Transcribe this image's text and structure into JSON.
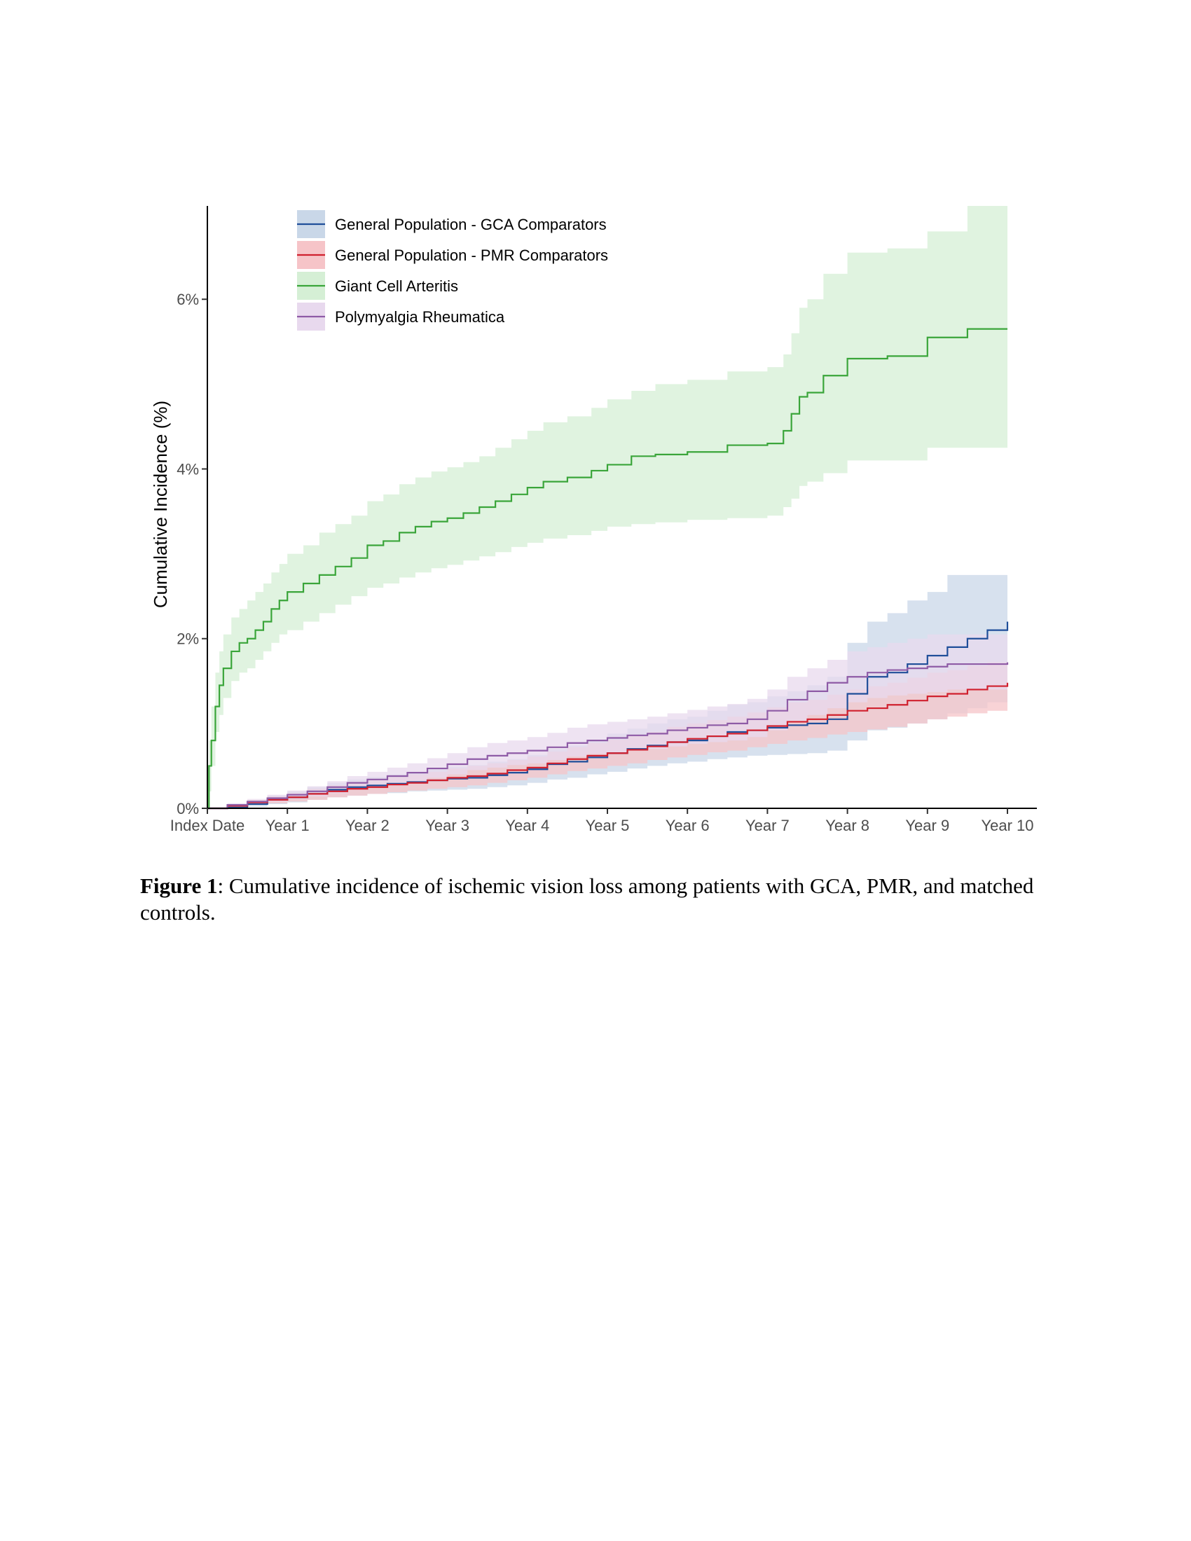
{
  "figure": {
    "label": "Figure 1",
    "caption": ": Cumulative incidence of ischemic vision loss among patients with GCA, PMR, and matched controls."
  },
  "chart_data": {
    "type": "line",
    "step": true,
    "confidence_bands": true,
    "ylabel": "Cumulative Incidence (%)",
    "xlabel": "",
    "x_tick_labels": [
      "Index Date",
      "Year 1",
      "Year 2",
      "Year 3",
      "Year 4",
      "Year 5",
      "Year 6",
      "Year 7",
      "Year 8",
      "Year 9",
      "Year 10"
    ],
    "x_ticks": [
      0,
      1,
      2,
      3,
      4,
      5,
      6,
      7,
      8,
      9,
      10
    ],
    "y_tick_labels": [
      "0%",
      "2%",
      "4%",
      "6%"
    ],
    "y_ticks": [
      0,
      2,
      4,
      6
    ],
    "xlim": [
      0,
      10
    ],
    "ylim": [
      0,
      7.1
    ],
    "grid": false,
    "legend_position": "top-left",
    "series": [
      {
        "name": "General Population - GCA Comparators",
        "color": "#1f4e99",
        "band_color": "#c9d7e8",
        "x": [
          0,
          0.25,
          0.5,
          0.75,
          1,
          1.25,
          1.5,
          1.75,
          2,
          2.25,
          2.5,
          2.75,
          3,
          3.25,
          3.5,
          3.75,
          4,
          4.25,
          4.5,
          4.75,
          5,
          5.25,
          5.5,
          5.75,
          6,
          6.25,
          6.5,
          6.75,
          7,
          7.25,
          7.5,
          7.75,
          8,
          8.25,
          8.5,
          8.75,
          9,
          9.25,
          9.5,
          9.75,
          10
        ],
        "y": [
          0,
          0.01,
          0.05,
          0.1,
          0.13,
          0.17,
          0.22,
          0.25,
          0.27,
          0.29,
          0.31,
          0.33,
          0.35,
          0.36,
          0.39,
          0.42,
          0.46,
          0.52,
          0.55,
          0.6,
          0.65,
          0.7,
          0.74,
          0.78,
          0.8,
          0.85,
          0.9,
          0.92,
          0.95,
          0.98,
          1.0,
          1.05,
          1.35,
          1.55,
          1.6,
          1.7,
          1.8,
          1.9,
          2.0,
          2.1,
          2.2
        ],
        "lower": [
          0,
          0,
          0.02,
          0.05,
          0.07,
          0.1,
          0.13,
          0.15,
          0.17,
          0.18,
          0.2,
          0.21,
          0.22,
          0.23,
          0.25,
          0.27,
          0.3,
          0.34,
          0.36,
          0.4,
          0.43,
          0.47,
          0.5,
          0.53,
          0.55,
          0.58,
          0.6,
          0.62,
          0.63,
          0.64,
          0.65,
          0.68,
          0.8,
          0.92,
          0.95,
          1.0,
          1.05,
          1.12,
          1.18,
          1.25,
          1.3
        ],
        "upper": [
          0,
          0.03,
          0.09,
          0.15,
          0.2,
          0.25,
          0.3,
          0.34,
          0.37,
          0.4,
          0.43,
          0.46,
          0.49,
          0.51,
          0.55,
          0.58,
          0.63,
          0.7,
          0.74,
          0.8,
          0.88,
          0.94,
          1.0,
          1.05,
          1.08,
          1.15,
          1.22,
          1.25,
          1.32,
          1.38,
          1.45,
          1.55,
          1.95,
          2.2,
          2.3,
          2.45,
          2.55,
          2.75,
          2.75,
          2.75,
          3.05
        ]
      },
      {
        "name": "General Population - PMR Comparators",
        "color": "#d0202e",
        "band_color": "#f6c4c8",
        "x": [
          0,
          0.25,
          0.5,
          0.75,
          1,
          1.25,
          1.5,
          1.75,
          2,
          2.25,
          2.5,
          2.75,
          3,
          3.25,
          3.5,
          3.75,
          4,
          4.25,
          4.5,
          4.75,
          5,
          5.25,
          5.5,
          5.75,
          6,
          6.25,
          6.5,
          6.75,
          7,
          7.25,
          7.5,
          7.75,
          8,
          8.25,
          8.5,
          8.75,
          9,
          9.25,
          9.5,
          9.75,
          10
        ],
        "y": [
          0,
          0.03,
          0.07,
          0.1,
          0.13,
          0.17,
          0.2,
          0.23,
          0.25,
          0.28,
          0.3,
          0.33,
          0.36,
          0.38,
          0.41,
          0.45,
          0.48,
          0.53,
          0.58,
          0.62,
          0.65,
          0.69,
          0.73,
          0.78,
          0.82,
          0.85,
          0.88,
          0.92,
          0.97,
          1.02,
          1.05,
          1.1,
          1.15,
          1.18,
          1.22,
          1.27,
          1.32,
          1.35,
          1.4,
          1.44,
          1.48
        ],
        "lower": [
          0,
          0.01,
          0.04,
          0.06,
          0.08,
          0.1,
          0.13,
          0.15,
          0.17,
          0.19,
          0.21,
          0.23,
          0.25,
          0.27,
          0.3,
          0.33,
          0.36,
          0.4,
          0.44,
          0.47,
          0.5,
          0.53,
          0.57,
          0.6,
          0.63,
          0.66,
          0.68,
          0.72,
          0.76,
          0.8,
          0.83,
          0.87,
          0.9,
          0.93,
          0.96,
          1.0,
          1.05,
          1.08,
          1.12,
          1.15,
          1.2
        ],
        "upper": [
          0,
          0.05,
          0.1,
          0.14,
          0.18,
          0.23,
          0.27,
          0.3,
          0.33,
          0.37,
          0.4,
          0.43,
          0.47,
          0.5,
          0.53,
          0.57,
          0.61,
          0.67,
          0.72,
          0.77,
          0.81,
          0.85,
          0.9,
          0.96,
          1.0,
          1.04,
          1.08,
          1.13,
          1.19,
          1.25,
          1.28,
          1.34,
          1.4,
          1.44,
          1.48,
          1.54,
          1.6,
          1.63,
          1.68,
          1.72,
          1.77
        ]
      },
      {
        "name": "Giant Cell Arteritis",
        "color": "#3aa53a",
        "band_color": "#d5efd5",
        "x": [
          0,
          0.02,
          0.05,
          0.1,
          0.15,
          0.2,
          0.3,
          0.4,
          0.5,
          0.6,
          0.7,
          0.8,
          0.9,
          1,
          1.2,
          1.4,
          1.6,
          1.8,
          2,
          2.2,
          2.4,
          2.6,
          2.8,
          3,
          3.2,
          3.4,
          3.6,
          3.8,
          4,
          4.2,
          4.5,
          4.8,
          5,
          5.3,
          5.6,
          6,
          6.5,
          7,
          7.2,
          7.3,
          7.4,
          7.5,
          7.7,
          8,
          8.5,
          9,
          9.5,
          10
        ],
        "y": [
          0,
          0.5,
          0.8,
          1.2,
          1.45,
          1.65,
          1.85,
          1.95,
          2.0,
          2.1,
          2.2,
          2.35,
          2.45,
          2.55,
          2.65,
          2.75,
          2.85,
          2.95,
          3.1,
          3.15,
          3.25,
          3.32,
          3.38,
          3.42,
          3.48,
          3.55,
          3.62,
          3.7,
          3.78,
          3.85,
          3.9,
          3.98,
          4.05,
          4.15,
          4.17,
          4.2,
          4.28,
          4.3,
          4.45,
          4.65,
          4.85,
          4.9,
          5.1,
          5.3,
          5.33,
          5.55,
          5.65,
          5.65
        ],
        "lower": [
          0,
          0.2,
          0.5,
          0.9,
          1.1,
          1.3,
          1.5,
          1.6,
          1.65,
          1.75,
          1.85,
          1.95,
          2.05,
          2.1,
          2.2,
          2.3,
          2.4,
          2.5,
          2.6,
          2.65,
          2.72,
          2.78,
          2.83,
          2.87,
          2.92,
          2.97,
          3.02,
          3.08,
          3.13,
          3.18,
          3.22,
          3.27,
          3.32,
          3.35,
          3.37,
          3.4,
          3.42,
          3.45,
          3.55,
          3.65,
          3.8,
          3.85,
          3.95,
          4.1,
          4.1,
          4.25,
          4.25,
          4.25
        ],
        "upper": [
          0,
          0.8,
          1.2,
          1.6,
          1.85,
          2.05,
          2.25,
          2.35,
          2.45,
          2.55,
          2.65,
          2.78,
          2.88,
          3.0,
          3.1,
          3.25,
          3.35,
          3.45,
          3.62,
          3.7,
          3.82,
          3.9,
          3.97,
          4.02,
          4.08,
          4.15,
          4.25,
          4.35,
          4.45,
          4.55,
          4.62,
          4.72,
          4.82,
          4.92,
          5.0,
          5.05,
          5.15,
          5.2,
          5.35,
          5.6,
          5.9,
          6.0,
          6.3,
          6.55,
          6.6,
          6.8,
          7.1,
          7.1
        ]
      },
      {
        "name": "Polymyalgia Rheumatica",
        "color": "#8e5ba6",
        "band_color": "#e8d9ee",
        "x": [
          0,
          0.25,
          0.5,
          0.75,
          1,
          1.25,
          1.5,
          1.75,
          2,
          2.25,
          2.5,
          2.75,
          3,
          3.25,
          3.5,
          3.75,
          4,
          4.25,
          4.5,
          4.75,
          5,
          5.25,
          5.5,
          5.75,
          6,
          6.25,
          6.5,
          6.75,
          7,
          7.25,
          7.5,
          7.75,
          8,
          8.25,
          8.5,
          8.75,
          9,
          9.25,
          9.5,
          9.75,
          10
        ],
        "y": [
          0,
          0.04,
          0.08,
          0.12,
          0.16,
          0.2,
          0.25,
          0.3,
          0.34,
          0.38,
          0.42,
          0.47,
          0.52,
          0.58,
          0.62,
          0.65,
          0.68,
          0.72,
          0.77,
          0.8,
          0.83,
          0.86,
          0.88,
          0.92,
          0.95,
          0.98,
          1.0,
          1.05,
          1.15,
          1.28,
          1.38,
          1.48,
          1.55,
          1.6,
          1.63,
          1.65,
          1.67,
          1.7,
          1.7,
          1.7,
          1.72
        ],
        "lower": [
          0,
          0.02,
          0.05,
          0.08,
          0.11,
          0.14,
          0.18,
          0.22,
          0.25,
          0.28,
          0.32,
          0.36,
          0.4,
          0.45,
          0.48,
          0.51,
          0.53,
          0.57,
          0.61,
          0.64,
          0.66,
          0.68,
          0.7,
          0.73,
          0.76,
          0.78,
          0.8,
          0.84,
          0.92,
          1.02,
          1.1,
          1.18,
          1.25,
          1.3,
          1.33,
          1.35,
          1.37,
          1.4,
          1.4,
          1.4,
          1.42
        ],
        "upper": [
          0,
          0.06,
          0.11,
          0.16,
          0.21,
          0.26,
          0.32,
          0.38,
          0.43,
          0.48,
          0.53,
          0.59,
          0.65,
          0.72,
          0.77,
          0.8,
          0.84,
          0.89,
          0.95,
          0.99,
          1.02,
          1.05,
          1.08,
          1.12,
          1.16,
          1.2,
          1.23,
          1.29,
          1.4,
          1.55,
          1.65,
          1.75,
          1.85,
          1.9,
          1.95,
          2.0,
          2.05,
          2.05,
          2.05,
          2.05,
          2.05
        ]
      }
    ]
  }
}
